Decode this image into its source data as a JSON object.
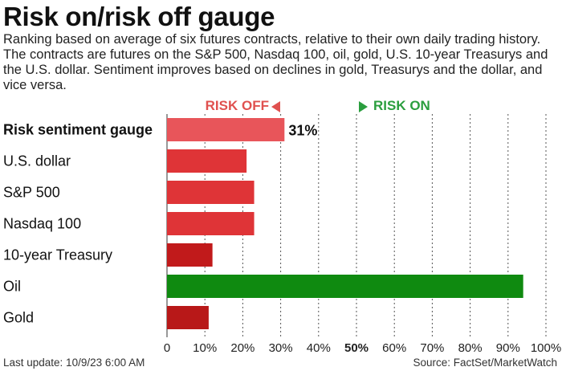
{
  "title": "Risk on/risk off gauge",
  "subtitle": "Ranking based on average of six futures contracts, relative to their own daily trading history. The contracts are futures on the S&P 500, Nasdaq 100, oil, gold, U.S. 10-year Treasurys and the U.S. dollar. Sentiment improves based on declines in gold, Treasurys and the dollar, and vice versa.",
  "legend": {
    "risk_off": "RISK OFF",
    "risk_on": "RISK ON"
  },
  "footer": {
    "last_update": "Last update: 10/9/23 6:00 AM",
    "source": "Source: FactSet/MarketWatch"
  },
  "colors": {
    "gauge": "#e8555a",
    "risk_off": "#df3437",
    "risk_off_dark": "#c11a1b",
    "risk_on": "#0f8a10",
    "grid": "#555555"
  },
  "chart_data": {
    "type": "bar",
    "orientation": "horizontal",
    "categories": [
      "Risk sentiment gauge",
      "U.S. dollar",
      "S&P 500",
      "Nasdaq 100",
      "10-year Treasury",
      "Oil",
      "Gold"
    ],
    "values": [
      31,
      21,
      23,
      23,
      12,
      94,
      11
    ],
    "value_labels": [
      "31%",
      "",
      "",
      "",
      "",
      "",
      ""
    ],
    "bar_colors": [
      "#e8555a",
      "#df3437",
      "#df3437",
      "#df3437",
      "#c11a1b",
      "#0f8a10",
      "#b81818"
    ],
    "bold_categories": [
      "Risk sentiment gauge"
    ],
    "xlim": [
      0,
      100
    ],
    "x_ticks": [
      "0",
      "10%",
      "20%",
      "30%",
      "40%",
      "50%",
      "60%",
      "70%",
      "80%",
      "90%",
      "100%"
    ],
    "bold_tick": "50%",
    "grid": "vertical dotted"
  }
}
